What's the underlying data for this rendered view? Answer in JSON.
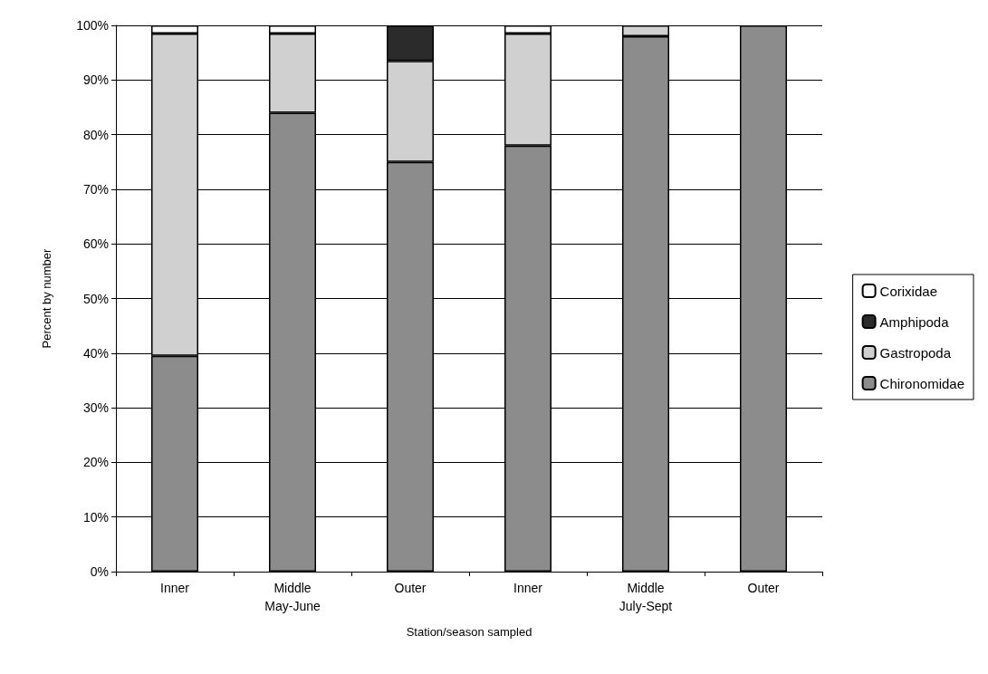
{
  "chart_data": {
    "type": "bar",
    "stacked": true,
    "xlabel": "Station/season sampled",
    "ylabel": "Percent by number",
    "categories": [
      "Inner",
      "Middle\nMay-June",
      "Outer",
      "Inner",
      "Middle\nJuly-Sept",
      "Outer"
    ],
    "series": [
      {
        "name": "Chironomidae",
        "color": "#8c8c8c",
        "values": [
          39.5,
          84,
          75,
          78,
          98,
          100
        ]
      },
      {
        "name": "Gastropoda",
        "color": "#d0d0d0",
        "values": [
          59,
          14.5,
          18.5,
          20.5,
          2,
          null
        ]
      },
      {
        "name": "Amphipoda",
        "color": "#2b2b2b",
        "values": [
          null,
          null,
          6.5,
          null,
          null,
          null
        ]
      },
      {
        "name": "Corixidae",
        "color": "#ffffff",
        "values": [
          1.5,
          1.5,
          null,
          1.5,
          null,
          null
        ]
      }
    ],
    "ylim": [
      0,
      100
    ],
    "yticks": [
      {
        "value": 0,
        "label": "0%"
      },
      {
        "value": 10,
        "label": "10%"
      },
      {
        "value": 20,
        "label": "20%"
      },
      {
        "value": 30,
        "label": "30%"
      },
      {
        "value": 40,
        "label": "40%"
      },
      {
        "value": 50,
        "label": "50%"
      },
      {
        "value": 60,
        "label": "60%"
      },
      {
        "value": 70,
        "label": "70%"
      },
      {
        "value": 80,
        "label": "80%"
      },
      {
        "value": 90,
        "label": "90%"
      },
      {
        "value": 100,
        "label": "100%"
      }
    ],
    "grid": "y",
    "legend": "right"
  }
}
